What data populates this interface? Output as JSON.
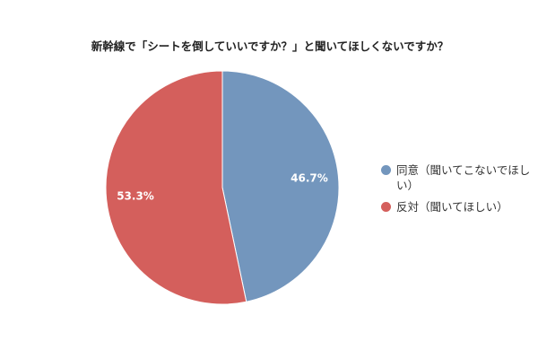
{
  "chart_data": {
    "type": "pie",
    "title": "新幹線で「シートを倒していいですか？」と聞いてほしくないですか？",
    "categories": [
      "同意（聞いてこないでほしい）",
      "反対（聞いてほしい）"
    ],
    "values": [
      46.7,
      53.3
    ],
    "value_labels": [
      "46.7%",
      "53.3%"
    ],
    "colors": [
      "#7396bd",
      "#d45f5c"
    ],
    "legend": "right"
  }
}
